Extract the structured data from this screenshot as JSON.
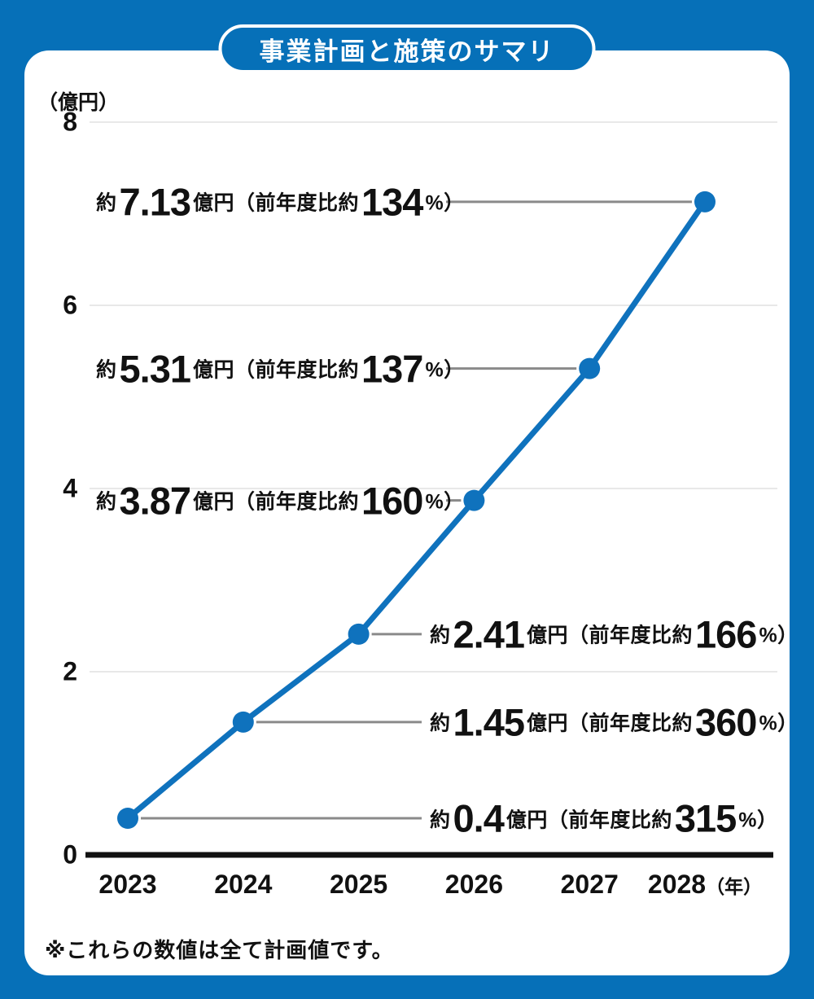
{
  "title": "事業計画と施策のサマリ",
  "y_axis": {
    "unit": "（億円）",
    "ticks": [
      "8",
      "6",
      "4",
      "2",
      "0"
    ]
  },
  "x_axis": {
    "categories": [
      "2023",
      "2024",
      "2025",
      "2026",
      "2027",
      "2028"
    ],
    "suffix": "（年）"
  },
  "footnote": "※これらの数値は全て計画値です。",
  "colors": {
    "frame_blue": "#0670b8",
    "line_blue": "#0f72bd",
    "grid_gray": "#e8e8e8",
    "connector_gray": "#8a8a8a",
    "axis_black": "#111111"
  },
  "chart_data": {
    "type": "line",
    "x": [
      2023,
      2024,
      2025,
      2026,
      2027,
      2028
    ],
    "values": [
      0.4,
      1.45,
      2.41,
      3.87,
      5.31,
      7.13
    ],
    "yoy_percent": [
      315,
      360,
      166,
      160,
      137,
      134
    ],
    "title": "事業計画と施策のサマリ",
    "ylabel": "（億円）",
    "xlabel": "（年）",
    "ylim": [
      0,
      8
    ],
    "grid": true,
    "legend": "none",
    "annotations": [
      {
        "prefix": "約",
        "value": "0.4",
        "mid": "億円（前年度比約",
        "pct": "315",
        "suffix": "%）",
        "side": "right"
      },
      {
        "prefix": "約",
        "value": "1.45",
        "mid": "億円（前年度比約",
        "pct": "360",
        "suffix": "%）",
        "side": "right"
      },
      {
        "prefix": "約",
        "value": "2.41",
        "mid": "億円（前年度比約",
        "pct": "166",
        "suffix": "%）",
        "side": "right"
      },
      {
        "prefix": "約",
        "value": "3.87",
        "mid": "億円（前年度比約",
        "pct": "160",
        "suffix": "%）",
        "side": "left"
      },
      {
        "prefix": "約",
        "value": "5.31",
        "mid": "億円（前年度比約",
        "pct": "137",
        "suffix": "%）",
        "side": "left"
      },
      {
        "prefix": "約",
        "value": "7.13",
        "mid": "億円（前年度比約",
        "pct": "134",
        "suffix": "%）",
        "side": "left"
      }
    ]
  }
}
